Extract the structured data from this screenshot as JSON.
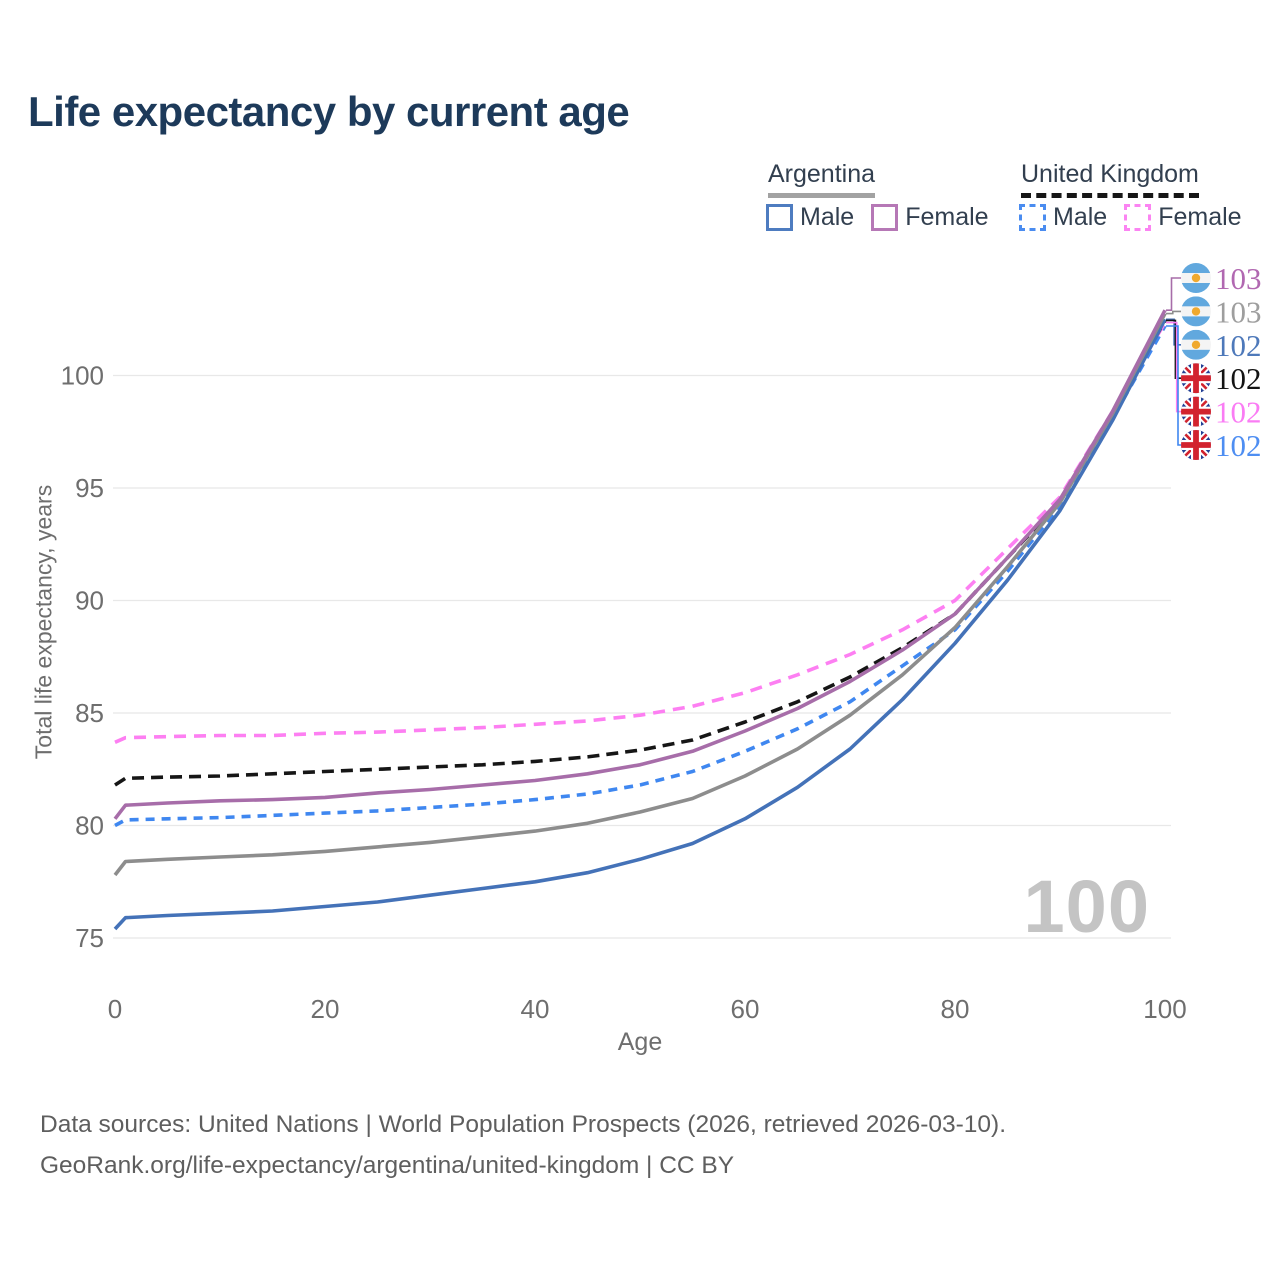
{
  "title": "Life expectancy by current age",
  "legend": {
    "argentina": {
      "label": "Argentina",
      "male_label": "Male",
      "female_label": "Female",
      "underline_color": "#a2a2a2",
      "male_swatch_color": "#4e7cc0",
      "female_swatch_color": "#b678b6"
    },
    "united_kingdom": {
      "label": "United Kingdom",
      "male_label": "Male",
      "female_label": "Female",
      "underline_color": "#161616",
      "male_swatch_color": "#4a8cf0",
      "female_swatch_color": "#fb84f2"
    }
  },
  "axes": {
    "x_title": "Age",
    "y_title": "Total life expectancy, years",
    "x_ticks": [
      0,
      20,
      40,
      60,
      80,
      100
    ],
    "y_ticks": [
      75,
      80,
      85,
      90,
      95,
      100
    ]
  },
  "watermark": "100",
  "footer": {
    "line1": "Data sources: United Nations | World Population Prospects (2026, retrieved 2026-03-10).",
    "line2": "GeoRank.org/life-expectancy/argentina/united-kingdom | CC BY"
  },
  "chart_data": {
    "type": "line",
    "title": "Life expectancy by current age",
    "xlabel": "Age",
    "ylabel": "Total life expectancy, years",
    "xlim": [
      0,
      100
    ],
    "ylim": [
      74,
      104
    ],
    "grid": "horizontal",
    "x": [
      0,
      1,
      5,
      10,
      15,
      20,
      25,
      30,
      35,
      40,
      45,
      50,
      55,
      60,
      65,
      70,
      75,
      80,
      85,
      90,
      95,
      100
    ],
    "series": [
      {
        "id": "uk-male",
        "name": "United Kingdom Male",
        "country": "United Kingdom",
        "sex": "male",
        "color": "#3f87f0",
        "dash": "9 7",
        "values": [
          80.0,
          80.25,
          80.3,
          80.35,
          80.45,
          80.55,
          80.65,
          80.8,
          80.95,
          81.15,
          81.4,
          81.8,
          82.4,
          83.3,
          84.3,
          85.5,
          87.1,
          88.7,
          91.3,
          94.2,
          98.1,
          102.2
        ]
      },
      {
        "id": "uk-female",
        "name": "United Kingdom Female",
        "country": "United Kingdom",
        "sex": "female",
        "color": "#fd7ff2",
        "dash": "12 8",
        "values": [
          83.7,
          83.9,
          83.95,
          84.0,
          84.0,
          84.1,
          84.15,
          84.25,
          84.35,
          84.5,
          84.65,
          84.9,
          85.3,
          85.9,
          86.7,
          87.6,
          88.7,
          90.0,
          92.3,
          94.6,
          98.4,
          102.35
        ]
      },
      {
        "id": "uk-all",
        "name": "United Kingdom",
        "country": "United Kingdom",
        "sex": "all",
        "color": "#161616",
        "dash": "12 7",
        "values": [
          81.8,
          82.1,
          82.15,
          82.2,
          82.3,
          82.4,
          82.5,
          82.6,
          82.7,
          82.85,
          83.05,
          83.35,
          83.8,
          84.6,
          85.5,
          86.6,
          87.9,
          89.4,
          91.9,
          94.4,
          98.3,
          102.45
        ]
      },
      {
        "id": "ar-male",
        "name": "Argentina Male",
        "country": "Argentina",
        "sex": "male",
        "color": "#4472b8",
        "dash": "",
        "values": [
          75.4,
          75.9,
          76.0,
          76.1,
          76.2,
          76.4,
          76.6,
          76.9,
          77.2,
          77.5,
          77.9,
          78.5,
          79.2,
          80.3,
          81.7,
          83.4,
          85.6,
          88.1,
          90.9,
          94.0,
          98.0,
          102.5
        ]
      },
      {
        "id": "ar-all",
        "name": "Argentina",
        "country": "Argentina",
        "sex": "all",
        "color": "#8d8d8d",
        "dash": "",
        "values": [
          77.8,
          78.4,
          78.5,
          78.6,
          78.7,
          78.85,
          79.05,
          79.25,
          79.5,
          79.75,
          80.1,
          80.6,
          81.2,
          82.2,
          83.4,
          84.9,
          86.7,
          88.8,
          91.5,
          94.35,
          98.3,
          102.75
        ]
      },
      {
        "id": "ar-female",
        "name": "Argentina Female",
        "country": "Argentina",
        "sex": "female",
        "color": "#a76da9",
        "dash": "",
        "values": [
          80.3,
          80.9,
          81.0,
          81.1,
          81.15,
          81.25,
          81.45,
          81.6,
          81.8,
          82.0,
          82.3,
          82.7,
          83.3,
          84.2,
          85.2,
          86.4,
          87.8,
          89.4,
          91.9,
          94.5,
          98.4,
          102.9
        ]
      }
    ],
    "end_labels": [
      {
        "series_id": "ar-female",
        "flag": "argentina",
        "value": "103",
        "color": "#b168b1"
      },
      {
        "series_id": "ar-all",
        "flag": "argentina",
        "value": "103",
        "color": "#9e9e9e"
      },
      {
        "series_id": "ar-male",
        "flag": "argentina",
        "value": "102",
        "color": "#4e79ba"
      },
      {
        "series_id": "uk-all",
        "flag": "united-kingdom",
        "value": "102",
        "color": "#141414"
      },
      {
        "series_id": "uk-female",
        "flag": "united-kingdom",
        "value": "102",
        "color": "#fa7cf4"
      },
      {
        "series_id": "uk-male",
        "flag": "united-kingdom",
        "value": "102",
        "color": "#4e8ef2"
      }
    ],
    "flag_colors": {
      "argentina_blue": "#61a8de",
      "argentina_white": "#f4f4f4",
      "argentina_sun": "#f0a92e",
      "uk_navy": "#223f94",
      "uk_white": "#ffffff",
      "uk_red": "#d2232e"
    },
    "gridline_color": "#e8e8e8",
    "tick_color": "#6e6e6e"
  }
}
